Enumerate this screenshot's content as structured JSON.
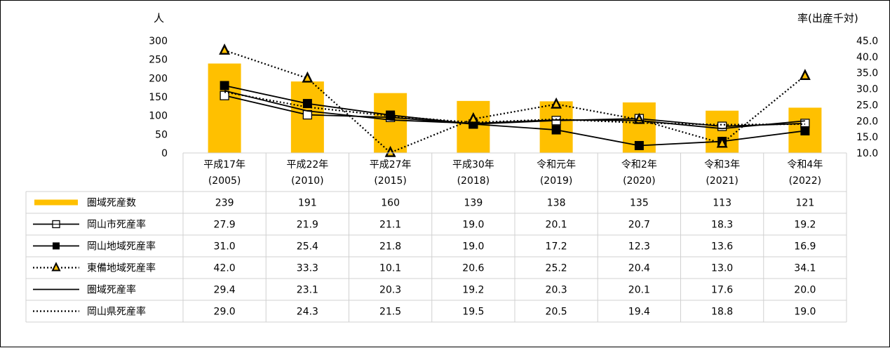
{
  "chart_data": {
    "type": "bar",
    "left_axis_label": "人",
    "right_axis_label": "率(出産千対)",
    "left_ylim": [
      0,
      300
    ],
    "left_ticks": [
      "0",
      "50",
      "100",
      "150",
      "200",
      "250",
      "300"
    ],
    "right_ylim": [
      10.0,
      45.0
    ],
    "right_ticks": [
      "10.0",
      "15.0",
      "20.0",
      "25.0",
      "30.0",
      "35.0",
      "40.0",
      "45.0"
    ],
    "categories": [
      [
        "平成17年",
        "(2005)"
      ],
      [
        "平成22年",
        "(2010)"
      ],
      [
        "平成27年",
        "(2015)"
      ],
      [
        "平成30年",
        "(2018)"
      ],
      [
        "令和元年",
        "(2019)"
      ],
      [
        "令和2年",
        "(2020)"
      ],
      [
        "令和3年",
        "(2021)"
      ],
      [
        "令和4年",
        "(2022)"
      ]
    ],
    "series": [
      {
        "name": "圏域死産数",
        "kind": "bar",
        "axis": "left",
        "style": "bar",
        "color": "#FFC000",
        "values": [
          239,
          191,
          160,
          139,
          138,
          135,
          113,
          121
        ],
        "labels": [
          "239",
          "191",
          "160",
          "139",
          "138",
          "135",
          "113",
          "121"
        ]
      },
      {
        "name": "岡山市死産率",
        "kind": "line",
        "axis": "right",
        "style": "solid-open-square",
        "color": "#000000",
        "values": [
          27.9,
          21.9,
          21.1,
          19.0,
          20.1,
          20.7,
          18.3,
          19.2
        ],
        "labels": [
          "27.9",
          "21.9",
          "21.1",
          "19.0",
          "20.1",
          "20.7",
          "18.3",
          "19.2"
        ]
      },
      {
        "name": "岡山地域死産率",
        "kind": "line",
        "axis": "right",
        "style": "solid-filled-square",
        "color": "#000000",
        "values": [
          31.0,
          25.4,
          21.8,
          19.0,
          17.2,
          12.3,
          13.6,
          16.9
        ],
        "labels": [
          "31.0",
          "25.4",
          "21.8",
          "19.0",
          "17.2",
          "12.3",
          "13.6",
          "16.9"
        ]
      },
      {
        "name": "東備地域死産率",
        "kind": "line",
        "axis": "right",
        "style": "dotted-triangle",
        "color": "#000000",
        "values": [
          42.0,
          33.3,
          10.1,
          20.6,
          25.2,
          20.4,
          13.0,
          34.1
        ],
        "labels": [
          "42.0",
          "33.3",
          "10.1",
          "20.6",
          "25.2",
          "20.4",
          "13.0",
          "34.1"
        ]
      },
      {
        "name": "圏域死産率",
        "kind": "line",
        "axis": "right",
        "style": "solid",
        "color": "#000000",
        "values": [
          29.4,
          23.1,
          20.3,
          19.2,
          20.3,
          20.1,
          17.6,
          20.0
        ],
        "labels": [
          "29.4",
          "23.1",
          "20.3",
          "19.2",
          "20.3",
          "20.1",
          "17.6",
          "20.0"
        ]
      },
      {
        "name": "岡山県死産率",
        "kind": "line",
        "axis": "right",
        "style": "dotted",
        "color": "#000000",
        "values": [
          29.0,
          24.3,
          21.5,
          19.5,
          20.5,
          19.4,
          18.8,
          19.0
        ],
        "labels": [
          "29.0",
          "24.3",
          "21.5",
          "19.5",
          "20.5",
          "19.4",
          "18.8",
          "19.0"
        ]
      }
    ],
    "legend": "data-table-below",
    "grid": false
  }
}
